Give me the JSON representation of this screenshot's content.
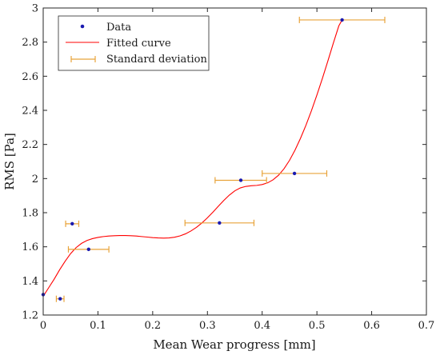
{
  "chart_data": {
    "type": "scatter",
    "title": "",
    "xlabel": "Mean Wear progress [mm]",
    "ylabel": "RMS [Pa]",
    "xlim": [
      0,
      0.7
    ],
    "ylim": [
      1.2,
      3.0
    ],
    "xticks": [
      0,
      0.1,
      0.2,
      0.3,
      0.4,
      0.5,
      0.6,
      0.7
    ],
    "yticks": [
      1.2,
      1.4,
      1.6,
      1.8,
      2.0,
      2.2,
      2.4,
      2.6,
      2.8,
      3.0
    ],
    "xtick_labels": [
      "0",
      "0.1",
      "0.2",
      "0.3",
      "0.4",
      "0.5",
      "0.6",
      "0.7"
    ],
    "ytick_labels": [
      "1.2",
      "1.4",
      "1.6",
      "1.8",
      "2",
      "2.2",
      "2.4",
      "2.6",
      "2.8",
      "3"
    ],
    "grid": false,
    "legend_position": "top-left",
    "series": [
      {
        "name": "Data",
        "kind": "points",
        "color": "#1a1ab0",
        "x": [
          0.0,
          0.031,
          0.053,
          0.083,
          0.322,
          0.361,
          0.459,
          0.546
        ],
        "y": [
          1.32,
          1.295,
          1.735,
          1.585,
          1.74,
          1.99,
          2.03,
          2.93
        ]
      },
      {
        "name": "Fitted curve",
        "kind": "line",
        "color": "#ff0000",
        "x": [
          0.0,
          0.01,
          0.02,
          0.03,
          0.04,
          0.05,
          0.06,
          0.07,
          0.08,
          0.09,
          0.1,
          0.11,
          0.12,
          0.13,
          0.14,
          0.15,
          0.16,
          0.17,
          0.18,
          0.19,
          0.2,
          0.21,
          0.22,
          0.23,
          0.24,
          0.25,
          0.26,
          0.27,
          0.28,
          0.29,
          0.3,
          0.31,
          0.32,
          0.33,
          0.34,
          0.35,
          0.36,
          0.37,
          0.38,
          0.39,
          0.4,
          0.41,
          0.42,
          0.43,
          0.44,
          0.45,
          0.46,
          0.47,
          0.48,
          0.49,
          0.5,
          0.51,
          0.52,
          0.53,
          0.54,
          0.546
        ],
        "y": [
          1.31,
          1.36,
          1.41,
          1.465,
          1.515,
          1.56,
          1.595,
          1.62,
          1.637,
          1.648,
          1.655,
          1.66,
          1.663,
          1.665,
          1.666,
          1.666,
          1.665,
          1.663,
          1.66,
          1.657,
          1.654,
          1.652,
          1.651,
          1.652,
          1.656,
          1.664,
          1.676,
          1.693,
          1.714,
          1.74,
          1.77,
          1.803,
          1.838,
          1.872,
          1.903,
          1.928,
          1.945,
          1.954,
          1.958,
          1.96,
          1.965,
          1.975,
          1.993,
          2.02,
          2.058,
          2.107,
          2.167,
          2.236,
          2.313,
          2.398,
          2.49,
          2.587,
          2.689,
          2.794,
          2.895,
          2.93
        ]
      },
      {
        "name": "Standard deviation",
        "kind": "horizontal-errorbar",
        "color": "#e8a33a",
        "x": [
          0.031,
          0.053,
          0.083,
          0.322,
          0.361,
          0.459,
          0.546
        ],
        "y": [
          1.295,
          1.735,
          1.585,
          1.74,
          1.99,
          2.03,
          2.93
        ],
        "xerr": [
          0.007,
          0.012,
          0.037,
          0.063,
          0.047,
          0.059,
          0.078
        ]
      }
    ],
    "legend": {
      "data_label": "Data",
      "curve_label": "Fitted curve",
      "std_label": "Standard deviation"
    }
  }
}
